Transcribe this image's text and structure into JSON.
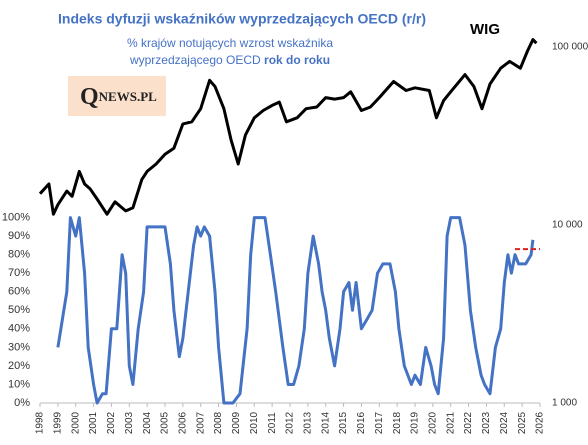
{
  "chart_data": {
    "type": "line",
    "title": "Indeks dyfuzji wskaźników wyprzedzających OECD (r/r)",
    "subtitle": [
      "% krajów notujących wzrost wskaźnika",
      "wyprzedzającego OECD",
      "rok do roku"
    ],
    "logo": {
      "initial": "Q",
      "rest": "NEWS.PL"
    },
    "xlim": [
      1998,
      2026
    ],
    "xticks": [
      1998,
      1999,
      2000,
      2001,
      2002,
      2003,
      2004,
      2005,
      2006,
      2007,
      2008,
      2009,
      2010,
      2011,
      2012,
      2013,
      2014,
      2015,
      2016,
      2017,
      2018,
      2019,
      2020,
      2021,
      2022,
      2023,
      2024,
      2025,
      2026
    ],
    "ylim": [
      0,
      192
    ],
    "yticks": [
      {
        "value": 0,
        "label": "0%"
      },
      {
        "value": 10,
        "label": "10%"
      },
      {
        "value": 20,
        "label": "20%"
      },
      {
        "value": 30,
        "label": "30%"
      },
      {
        "value": 40,
        "label": "40%"
      },
      {
        "value": 50,
        "label": "50%"
      },
      {
        "value": 60,
        "label": "60%"
      },
      {
        "value": 70,
        "label": "70%"
      },
      {
        "value": 80,
        "label": "80%"
      },
      {
        "value": 90,
        "label": "90%"
      },
      {
        "value": 100,
        "label": "100%"
      }
    ],
    "y2lim": [
      1000,
      100000
    ],
    "y2log": true,
    "y2ticks": [
      {
        "value": 1000,
        "label": "1 000"
      },
      {
        "value": 10000,
        "label": "10 000"
      },
      {
        "value": 100000,
        "label": "100 000"
      }
    ],
    "reference": {
      "value": 83,
      "x": [
        2024.6,
        2026
      ],
      "color": "#e02020"
    },
    "series": [
      {
        "name": "WIG",
        "axis": "y2",
        "color": "#000000",
        "x": [
          1998.0,
          1998.5,
          1998.75,
          1999.0,
          1999.5,
          1999.8,
          2000.2,
          2000.5,
          2000.8,
          2001.2,
          2001.75,
          2002.2,
          2002.8,
          2003.2,
          2003.7,
          2004.0,
          2004.5,
          2005.0,
          2005.5,
          2006.0,
          2006.5,
          2007.0,
          2007.5,
          2007.8,
          2008.3,
          2008.7,
          2009.1,
          2009.5,
          2010.0,
          2010.5,
          2011.0,
          2011.4,
          2011.8,
          2012.4,
          2012.9,
          2013.5,
          2014.0,
          2014.5,
          2015.0,
          2015.4,
          2016.0,
          2016.5,
          2017.0,
          2017.8,
          2018.5,
          2019.0,
          2019.8,
          2020.2,
          2020.6,
          2021.0,
          2021.8,
          2022.3,
          2022.75,
          2023.2,
          2023.8,
          2024.3,
          2024.9,
          2025.3,
          2025.6,
          2025.8
        ],
        "values": [
          15000,
          17000,
          11500,
          13000,
          15500,
          14500,
          20000,
          17000,
          16000,
          14000,
          11500,
          13500,
          12000,
          12500,
          18000,
          20000,
          22000,
          25000,
          27000,
          37000,
          38000,
          45000,
          65000,
          60000,
          45000,
          30000,
          22000,
          32000,
          40000,
          44000,
          47000,
          49000,
          38000,
          40000,
          45000,
          46000,
          52000,
          51000,
          52000,
          56000,
          44000,
          46000,
          52000,
          64000,
          57000,
          59000,
          57000,
          40000,
          50000,
          56000,
          70000,
          60000,
          45000,
          62000,
          76000,
          83000,
          76000,
          95000,
          110000,
          105000
        ]
      },
      {
        "color": "#4472c4",
        "x": [
          1999.0,
          1999.5,
          1999.7,
          2000.0,
          2000.2,
          2000.5,
          2000.7,
          2001.0,
          2001.2,
          2001.5,
          2001.7,
          2002.0,
          2002.3,
          2002.6,
          2002.8,
          2003.0,
          2003.2,
          2003.5,
          2003.8,
          2004.0,
          2004.5,
          2005.0,
          2005.3,
          2005.5,
          2005.8,
          2006.0,
          2006.3,
          2006.6,
          2006.8,
          2007.0,
          2007.2,
          2007.5,
          2007.8,
          2008.0,
          2008.3,
          2008.8,
          2009.2,
          2009.6,
          2009.8,
          2010.0,
          2010.6,
          2010.9,
          2011.2,
          2011.6,
          2011.9,
          2012.2,
          2012.5,
          2012.8,
          2013.0,
          2013.3,
          2013.6,
          2013.8,
          2014.0,
          2014.2,
          2014.5,
          2014.8,
          2015.0,
          2015.3,
          2015.5,
          2015.7,
          2016.0,
          2016.3,
          2016.6,
          2016.9,
          2017.2,
          2017.6,
          2017.9,
          2018.1,
          2018.4,
          2018.8,
          2019.0,
          2019.3,
          2019.6,
          2019.9,
          2020.1,
          2020.3,
          2020.6,
          2020.8,
          2021.0,
          2021.5,
          2021.8,
          2022.1,
          2022.4,
          2022.7,
          2022.9,
          2023.2,
          2023.5,
          2023.8,
          2024.0,
          2024.2,
          2024.4,
          2024.6,
          2024.8,
          2025.2,
          2025.5,
          2025.6
        ],
        "values": [
          30,
          60,
          100,
          90,
          100,
          70,
          30,
          10,
          0,
          5,
          5,
          40,
          40,
          80,
          70,
          20,
          10,
          40,
          60,
          95,
          95,
          95,
          75,
          50,
          25,
          35,
          60,
          85,
          95,
          90,
          95,
          90,
          60,
          30,
          0,
          0,
          5,
          40,
          80,
          100,
          100,
          80,
          60,
          30,
          10,
          10,
          20,
          40,
          70,
          90,
          75,
          60,
          50,
          35,
          20,
          40,
          60,
          65,
          50,
          65,
          40,
          45,
          50,
          70,
          75,
          75,
          60,
          40,
          20,
          10,
          15,
          10,
          30,
          20,
          10,
          5,
          35,
          90,
          100,
          100,
          85,
          50,
          30,
          15,
          10,
          5,
          30,
          40,
          65,
          80,
          70,
          80,
          75,
          75,
          80,
          88
        ]
      }
    ]
  }
}
